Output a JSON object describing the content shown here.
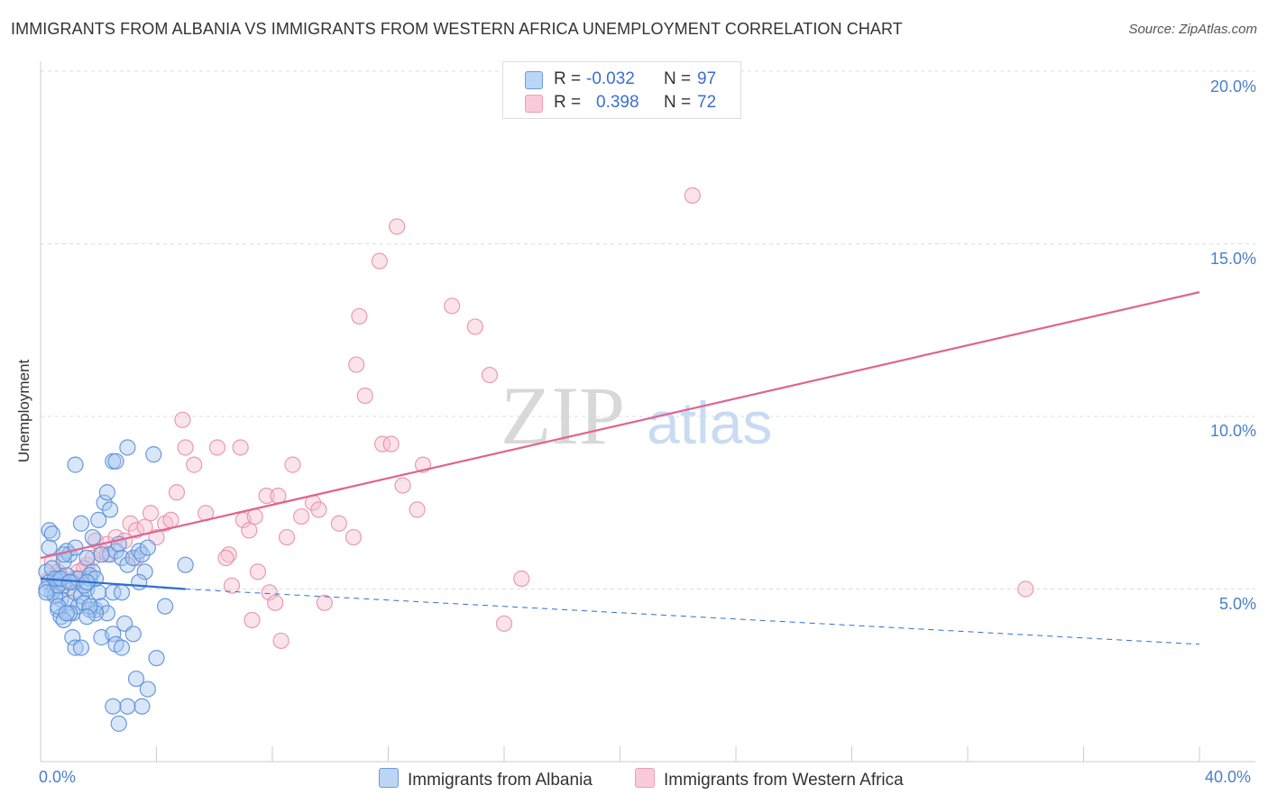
{
  "title": "IMMIGRANTS FROM ALBANIA VS IMMIGRANTS FROM WESTERN AFRICA UNEMPLOYMENT CORRELATION CHART",
  "source": "Source: ZipAtlas.com",
  "watermark": {
    "zip": "ZIP",
    "atlas": "atlas"
  },
  "legend": {
    "r_label": "R =",
    "n_label": "N =",
    "series": [
      {
        "name": "Immigrants from Albania",
        "r": "-0.032",
        "n": "97"
      },
      {
        "name": "Immigrants from Western Africa",
        "r": "0.398",
        "n": "72"
      }
    ]
  },
  "colors": {
    "albania_fill": "#a8c8f0",
    "albania_stroke": "#5a8fd8",
    "albania_line": "#2c6fd1",
    "wafrica_fill": "#f7c0d0",
    "wafrica_stroke": "#e890aa",
    "wafrica_line": "#e0648f",
    "axis_text": "#4a7fc9",
    "grid": "#dddddd"
  },
  "chart_data": {
    "type": "scatter",
    "xlabel": "",
    "ylabel": "Unemployment",
    "xlim": [
      0,
      40
    ],
    "ylim": [
      0,
      20
    ],
    "x_tick_labels": [
      "0.0%",
      "40.0%"
    ],
    "y_ticks": [
      5,
      10,
      15,
      20
    ],
    "y_tick_labels": [
      "5.0%",
      "10.0%",
      "15.0%",
      "20.0%"
    ],
    "grid": true,
    "series": [
      {
        "name": "Immigrants from Albania",
        "trend": {
          "x0": 0,
          "y0": 5.3,
          "x1": 5.0,
          "y1": 5.0,
          "dash_to_x": 40,
          "dash_to_y": 3.4
        },
        "points": [
          [
            0.2,
            5.5
          ],
          [
            0.3,
            5.2
          ],
          [
            0.4,
            4.9
          ],
          [
            0.5,
            5.0
          ],
          [
            0.6,
            5.3
          ],
          [
            0.7,
            4.7
          ],
          [
            0.8,
            5.1
          ],
          [
            0.9,
            5.4
          ],
          [
            1.0,
            4.6
          ],
          [
            1.1,
            4.3
          ],
          [
            0.3,
            6.7
          ],
          [
            0.4,
            6.6
          ],
          [
            0.5,
            4.8
          ],
          [
            0.6,
            4.4
          ],
          [
            0.7,
            4.2
          ],
          [
            0.8,
            5.8
          ],
          [
            0.9,
            6.1
          ],
          [
            1.0,
            6.0
          ],
          [
            1.1,
            5.2
          ],
          [
            1.2,
            4.9
          ],
          [
            1.3,
            4.5
          ],
          [
            1.4,
            4.8
          ],
          [
            1.5,
            4.6
          ],
          [
            1.6,
            5.0
          ],
          [
            1.7,
            5.3
          ],
          [
            1.8,
            5.5
          ],
          [
            1.9,
            4.4
          ],
          [
            2.0,
            4.9
          ],
          [
            1.2,
            6.2
          ],
          [
            1.4,
            6.9
          ],
          [
            1.6,
            5.9
          ],
          [
            1.8,
            6.5
          ],
          [
            2.0,
            7.0
          ],
          [
            2.2,
            7.5
          ],
          [
            2.3,
            7.8
          ],
          [
            2.4,
            7.3
          ],
          [
            2.5,
            8.7
          ],
          [
            2.6,
            8.7
          ],
          [
            1.2,
            8.6
          ],
          [
            2.4,
            6.0
          ],
          [
            2.6,
            6.1
          ],
          [
            2.7,
            6.3
          ],
          [
            2.8,
            5.9
          ],
          [
            3.0,
            5.7
          ],
          [
            3.2,
            5.9
          ],
          [
            3.4,
            6.1
          ],
          [
            3.5,
            6.0
          ],
          [
            3.6,
            5.5
          ],
          [
            3.4,
            5.2
          ],
          [
            3.7,
            6.2
          ],
          [
            1.1,
            3.6
          ],
          [
            1.2,
            3.3
          ],
          [
            1.4,
            3.3
          ],
          [
            1.7,
            4.4
          ],
          [
            2.1,
            3.6
          ],
          [
            2.1,
            4.5
          ],
          [
            2.5,
            3.7
          ],
          [
            2.6,
            3.4
          ],
          [
            2.8,
            3.3
          ],
          [
            2.9,
            4.0
          ],
          [
            3.2,
            3.7
          ],
          [
            2.5,
            4.9
          ],
          [
            2.8,
            4.9
          ],
          [
            2.3,
            4.3
          ],
          [
            1.9,
            4.3
          ],
          [
            1.7,
            4.5
          ],
          [
            1.6,
            4.2
          ],
          [
            1.0,
            4.3
          ],
          [
            0.8,
            4.1
          ],
          [
            0.6,
            4.5
          ],
          [
            3.7,
            2.1
          ],
          [
            3.5,
            1.6
          ],
          [
            3.3,
            2.4
          ],
          [
            3.0,
            1.6
          ],
          [
            2.7,
            1.1
          ],
          [
            2.5,
            1.6
          ],
          [
            3.0,
            9.1
          ],
          [
            4.0,
            3.0
          ],
          [
            4.3,
            4.5
          ],
          [
            5.0,
            5.7
          ],
          [
            3.9,
            8.9
          ],
          [
            0.2,
            5.0
          ],
          [
            0.4,
            5.6
          ],
          [
            0.2,
            4.9
          ],
          [
            0.6,
            5.1
          ],
          [
            0.9,
            4.3
          ],
          [
            1.3,
            5.3
          ],
          [
            1.5,
            5.1
          ],
          [
            1.7,
            5.4
          ],
          [
            1.9,
            5.3
          ],
          [
            0.5,
            5.3
          ],
          [
            0.7,
            5.3
          ],
          [
            1.0,
            5.2
          ],
          [
            1.6,
            5.2
          ],
          [
            2.1,
            6.0
          ],
          [
            0.3,
            6.2
          ],
          [
            0.8,
            6.0
          ]
        ]
      },
      {
        "name": "Immigrants from Western Africa",
        "trend": {
          "x0": 0,
          "y0": 5.9,
          "x1": 40,
          "y1": 13.6
        },
        "points": [
          [
            0.3,
            5.3
          ],
          [
            0.5,
            5.1
          ],
          [
            0.7,
            5.4
          ],
          [
            0.9,
            5.0
          ],
          [
            1.1,
            5.2
          ],
          [
            1.3,
            5.5
          ],
          [
            1.6,
            5.7
          ],
          [
            1.8,
            5.9
          ],
          [
            2.1,
            6.1
          ],
          [
            2.3,
            6.0
          ],
          [
            0.4,
            5.8
          ],
          [
            0.6,
            5.5
          ],
          [
            0.8,
            5.2
          ],
          [
            1.2,
            5.3
          ],
          [
            1.5,
            5.6
          ],
          [
            1.9,
            6.4
          ],
          [
            2.3,
            6.3
          ],
          [
            2.6,
            6.5
          ],
          [
            2.9,
            6.4
          ],
          [
            3.1,
            6.9
          ],
          [
            3.3,
            6.7
          ],
          [
            3.6,
            6.8
          ],
          [
            3.8,
            7.2
          ],
          [
            4.0,
            6.5
          ],
          [
            4.3,
            6.9
          ],
          [
            4.5,
            7.0
          ],
          [
            4.7,
            7.8
          ],
          [
            5.0,
            9.1
          ],
          [
            5.3,
            8.6
          ],
          [
            5.7,
            7.2
          ],
          [
            6.1,
            9.1
          ],
          [
            6.9,
            9.1
          ],
          [
            7.0,
            7.0
          ],
          [
            7.2,
            6.7
          ],
          [
            7.4,
            7.1
          ],
          [
            7.8,
            7.7
          ],
          [
            8.2,
            7.7
          ],
          [
            8.7,
            8.6
          ],
          [
            9.0,
            7.1
          ],
          [
            9.4,
            7.5
          ],
          [
            9.6,
            7.3
          ],
          [
            10.3,
            6.9
          ],
          [
            10.8,
            6.5
          ],
          [
            4.9,
            9.9
          ],
          [
            6.5,
            6.0
          ],
          [
            6.4,
            5.9
          ],
          [
            6.6,
            5.1
          ],
          [
            7.3,
            4.1
          ],
          [
            7.5,
            5.5
          ],
          [
            7.9,
            4.9
          ],
          [
            8.1,
            4.6
          ],
          [
            8.3,
            3.5
          ],
          [
            8.5,
            6.5
          ],
          [
            9.8,
            4.6
          ],
          [
            11.8,
            9.2
          ],
          [
            12.1,
            9.2
          ],
          [
            11.2,
            10.6
          ],
          [
            10.9,
            11.5
          ],
          [
            11.0,
            12.9
          ],
          [
            11.7,
            14.5
          ],
          [
            12.3,
            15.5
          ],
          [
            12.5,
            8.0
          ],
          [
            13.0,
            7.3
          ],
          [
            13.2,
            8.6
          ],
          [
            14.2,
            13.2
          ],
          [
            15.0,
            12.6
          ],
          [
            15.5,
            11.2
          ],
          [
            16.0,
            4.0
          ],
          [
            16.6,
            5.3
          ],
          [
            22.5,
            16.4
          ],
          [
            34.0,
            5.0
          ],
          [
            3.3,
            5.9
          ]
        ]
      }
    ]
  }
}
